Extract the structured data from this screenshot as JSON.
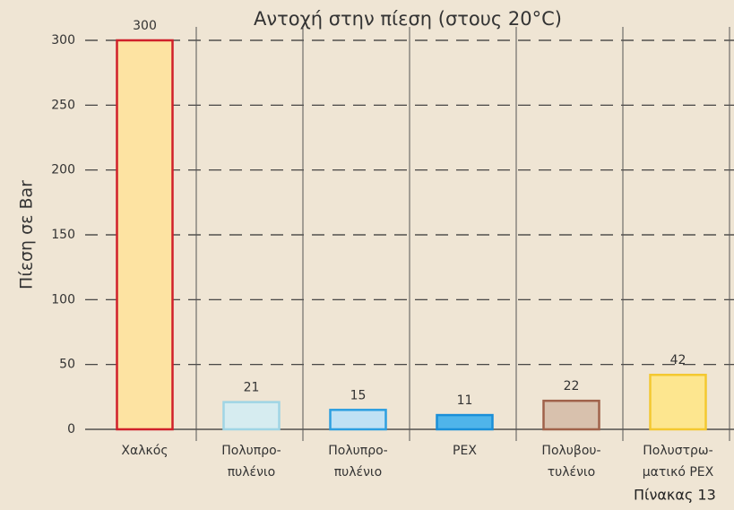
{
  "chart_data": {
    "type": "bar",
    "title": "Αντοχή στην πίεση (στους 20°C)",
    "y_label": "Πίεση σε Bar",
    "caption": "Πίνακας 13",
    "categories": [
      [
        "Χαλκός"
      ],
      [
        "Πολυπρο-",
        "πυλένιο"
      ],
      [
        "Πολυπρο-",
        "πυλένιο"
      ],
      [
        "PEX"
      ],
      [
        "Πολυβου-",
        "τυλένιο"
      ],
      [
        "Πολυστρω-",
        "ματικό PEX"
      ]
    ],
    "values": [
      300,
      21,
      15,
      11,
      22,
      42
    ],
    "colors": [
      "#fde3a2",
      "#d6ecf0",
      "#c0e1f4",
      "#4fb4ea",
      "#d8c1ad",
      "#fde68f"
    ],
    "edge_colors": [
      "#d0202a",
      "#9fd5e5",
      "#2d9fe0",
      "#1a8fd8",
      "#a0624a",
      "#f4c830"
    ],
    "ylim": [
      0,
      300
    ],
    "yticks": [
      0,
      50,
      100,
      150,
      200,
      250,
      300
    ],
    "grid": true
  }
}
